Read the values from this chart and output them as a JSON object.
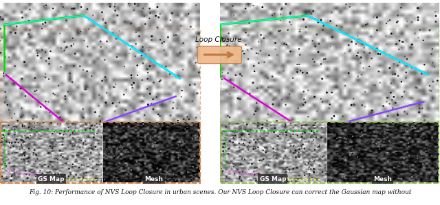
{
  "background_color": "#ffffff",
  "fig_width": 6.4,
  "fig_height": 2.99,
  "dpi": 100,
  "caption": "Fig. 10: Performance of NVS Loop Closure in urban scenes. Our NVS Loop Closure can correct the Gaussian map without",
  "caption_fontsize": 6.5,
  "loop_closure_label": "Loop Closure",
  "gs_map_label": "GS Map",
  "mesh_label": "Mesh",
  "left_border_color": "#d4884a",
  "right_border_color": "#90c050",
  "label_bg_color": "#222222",
  "label_text_color": "#ffffff",
  "label_fontsize": 6.5,
  "arrow_fill_color": "#f0b88a",
  "arrow_edge_color": "#c07840",
  "loop_text_fontsize": 7.5,
  "caption_color": "#111111"
}
